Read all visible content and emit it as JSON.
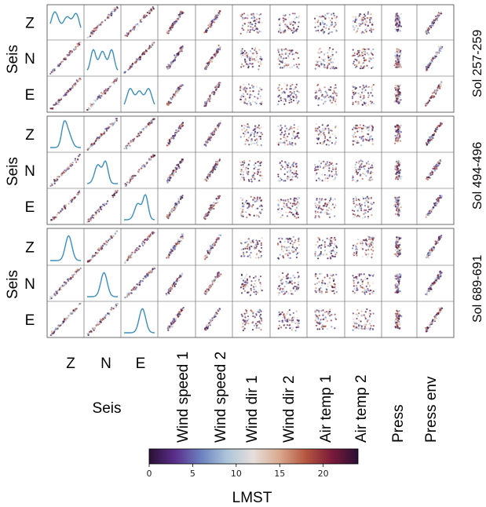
{
  "chart_data": {
    "type": "scatter",
    "layout": "scatter-matrix",
    "row_variables": [
      "Z",
      "N",
      "E"
    ],
    "row_group_label": "Seis",
    "column_variables": [
      "Z",
      "N",
      "E",
      "Wind speed 1",
      "Wind speed 2",
      "Wind dir 1",
      "Wind dir 2",
      "Air temp 1",
      "Air temp 2",
      "Press",
      "Press env"
    ],
    "column_group_label": "Seis",
    "diagonal": "kde",
    "color_variable": "LMST",
    "colormap": "twilight_shifted",
    "colorbar": {
      "label": "LMST",
      "min": 0,
      "max": 24,
      "ticks": [
        "0",
        "5",
        "10",
        "15",
        "20"
      ],
      "stops": [
        "#2a1034",
        "#5a2f8c",
        "#6c82bf",
        "#aec6da",
        "#e6dedb",
        "#d8a98e",
        "#b5553f",
        "#7a1a39",
        "#2a1034"
      ]
    },
    "panels": [
      {
        "label": "Sol 257-259"
      },
      {
        "label": "Sol 494-496"
      },
      {
        "label": "Sol 689-691"
      }
    ],
    "grid": false,
    "legend": "colorbar-bottom"
  }
}
